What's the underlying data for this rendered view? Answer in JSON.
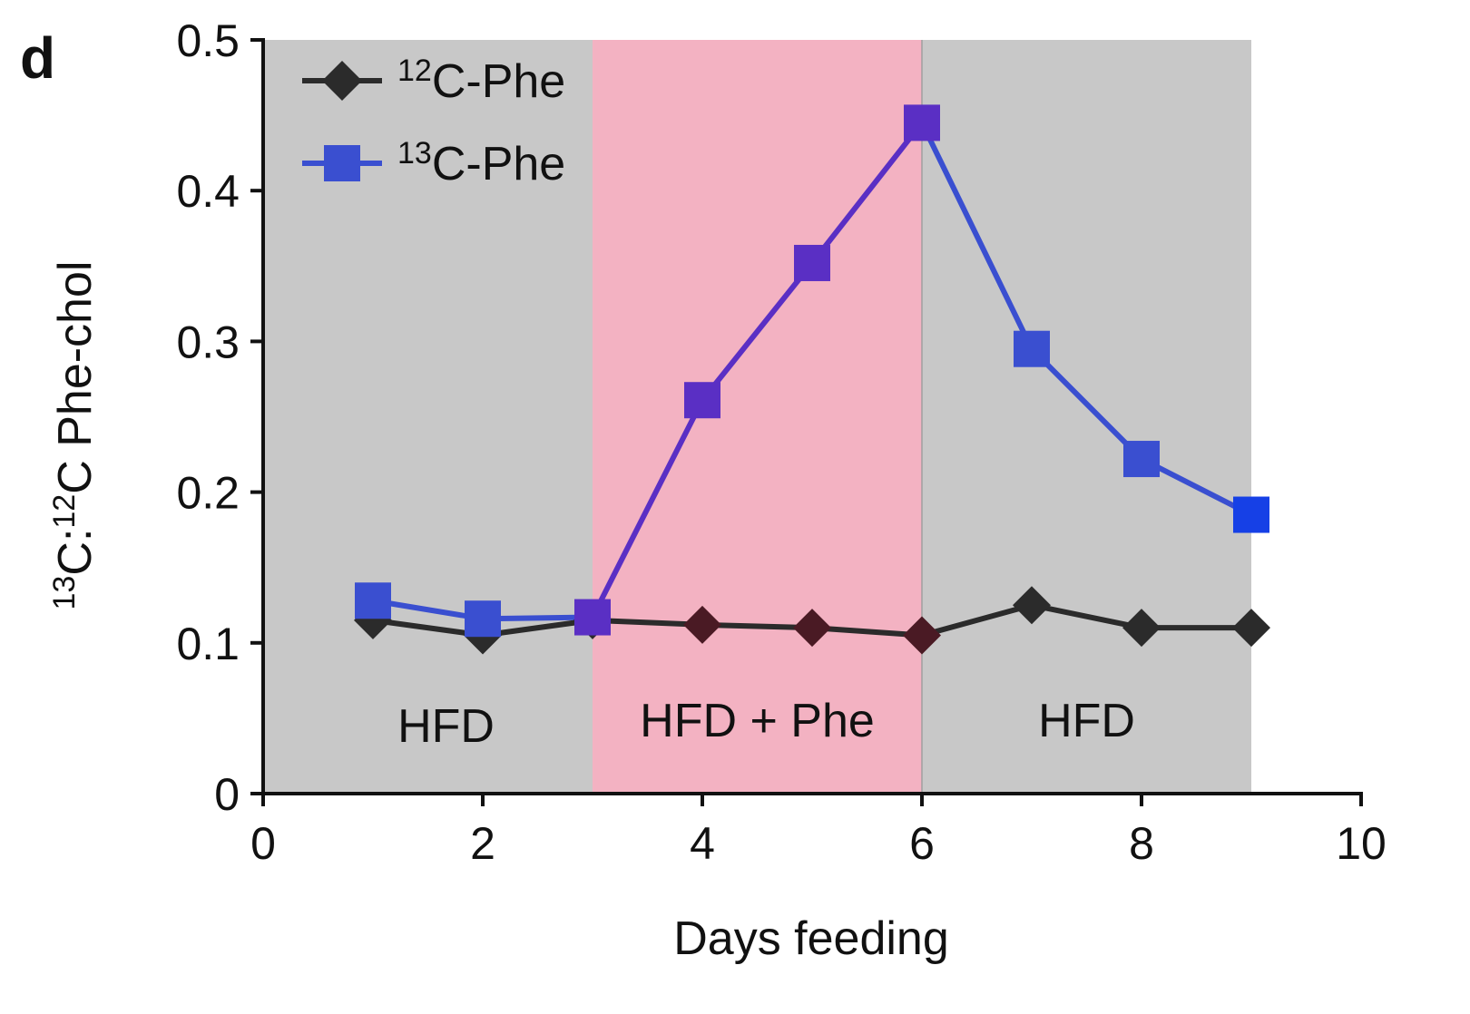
{
  "panel_label": "d",
  "chart_data": {
    "type": "line",
    "xlabel": "Days feeding",
    "ylabel": {
      "sup1": "13",
      "mid": "C:",
      "sup2": "12",
      "end": "C Phe-chol"
    },
    "xlim": [
      0,
      10
    ],
    "ylim": [
      0,
      0.5
    ],
    "xticks": [
      "0",
      "2",
      "4",
      "6",
      "8",
      "10"
    ],
    "yticks": [
      "0",
      "0.1",
      "0.2",
      "0.3",
      "0.4",
      "0.5"
    ],
    "regions": [
      {
        "x0": 0,
        "x1": 3,
        "label": "HFD",
        "color": "#c8c8c8"
      },
      {
        "x0": 3,
        "x1": 6,
        "label": "HFD + Phe",
        "color": "#f3b2c2"
      },
      {
        "x0": 6,
        "x1": 9,
        "label": "HFD",
        "color": "#c8c8c8"
      }
    ],
    "series": [
      {
        "name_sup": "12",
        "name_rest": "C-Phe",
        "marker": "diamond",
        "color": "#2b2b2b",
        "x": [
          1,
          2,
          3,
          4,
          5,
          6,
          7,
          8,
          9
        ],
        "y": [
          0.115,
          0.105,
          0.115,
          0.112,
          0.11,
          0.105,
          0.125,
          0.11,
          0.11
        ]
      },
      {
        "name_sup": "13",
        "name_rest": "C-Phe",
        "marker": "square",
        "color": "#3a4fd0",
        "highlight_color": "#5a2fc4",
        "x": [
          1,
          2,
          3,
          4,
          5,
          6,
          7,
          8,
          9
        ],
        "y": [
          0.128,
          0.116,
          0.117,
          0.261,
          0.352,
          0.445,
          0.295,
          0.222,
          0.185
        ]
      }
    ],
    "legend_position": "top-left",
    "grid": false
  }
}
